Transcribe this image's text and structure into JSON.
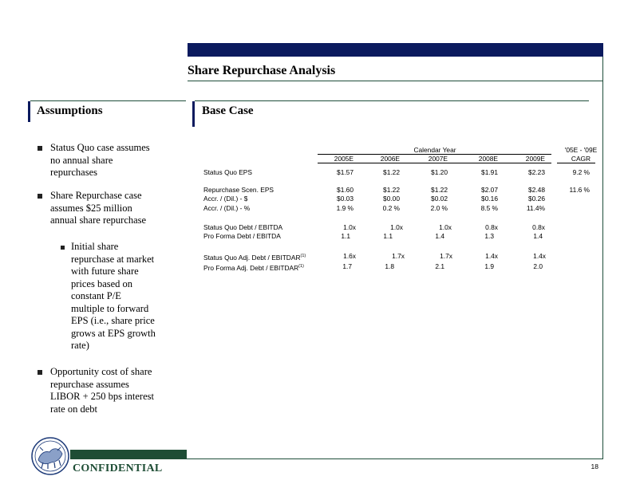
{
  "page": {
    "title": "Share Repurchase Analysis",
    "confidential": "CONFIDENTIAL",
    "page_number": "18"
  },
  "assumptions": {
    "heading": "Assumptions",
    "bullets": [
      [
        "Status Quo case assumes",
        "no annual share",
        "repurchases"
      ],
      [
        "Share Repurchase case",
        "assumes $25 million",
        "annual share repurchase"
      ],
      [
        "Opportunity cost of share",
        "repurchase assumes",
        "LIBOR + 250 bps interest",
        "rate on debt"
      ]
    ],
    "sub_bullet": [
      "Initial share",
      "repurchase at market",
      "with future share",
      "prices based on",
      "constant P/E",
      "multiple to forward",
      "EPS (i.e., share price",
      "grows at EPS growth",
      "rate)"
    ]
  },
  "base_case": {
    "heading": "Base Case",
    "calendar_year_label": "Calendar Year",
    "cagr_label_1": "'05E - '09E",
    "cagr_label_2": "CAGR",
    "years": [
      "2005E",
      "2006E",
      "2007E",
      "2008E",
      "2009E"
    ],
    "rows": [
      {
        "label": "Status Quo EPS",
        "sup": "",
        "values": [
          "$1.57",
          "$1.22",
          "$1.20",
          "$1.91",
          "$2.23"
        ],
        "cagr": "9.2 %"
      },
      {
        "label": "Repurchase Scen. EPS",
        "sup": "",
        "values": [
          "$1.60",
          "$1.22",
          "$1.22",
          "$2.07",
          "$2.48"
        ],
        "cagr": "11.6 %"
      },
      {
        "label": "Accr. / (Dil.) - $",
        "sup": "",
        "values": [
          "$0.03",
          "$0.00",
          "$0.02",
          "$0.16",
          "$0.26"
        ],
        "cagr": ""
      },
      {
        "label": "Accr. / (Dil.) - %",
        "sup": "",
        "values": [
          "1.9 %",
          "0.2 %",
          "2.0 %",
          "8.5 %",
          "11.4%"
        ],
        "cagr": ""
      },
      {
        "label": "Status Quo Debt / EBITDA",
        "sup": "",
        "values": [
          "1.0x",
          "1.0x",
          "1.0x",
          "0.8x",
          "0.8x"
        ],
        "cagr": ""
      },
      {
        "label": "Pro Forma Debt / EBITDA",
        "sup": "",
        "values": [
          "1.1",
          "1.1",
          "1.4",
          "1.3",
          "1.4"
        ],
        "cagr": ""
      },
      {
        "label": "Status Quo Adj. Debt / EBITDAR",
        "sup": "(1)",
        "values": [
          "1.6x",
          "1.7x",
          "1.7x",
          "1.4x",
          "1.4x"
        ],
        "cagr": ""
      },
      {
        "label": "Pro Forma Adj. Debt / EBITDAR",
        "sup": "(1)",
        "values": [
          "1.7",
          "1.8",
          "2.1",
          "1.9",
          "2.0"
        ],
        "cagr": ""
      }
    ]
  },
  "colors": {
    "navy": "#0b1a5e",
    "green": "#1e4d35"
  },
  "icons": [
    "bull-bear-logo-icon",
    "square-bullet-icon"
  ]
}
